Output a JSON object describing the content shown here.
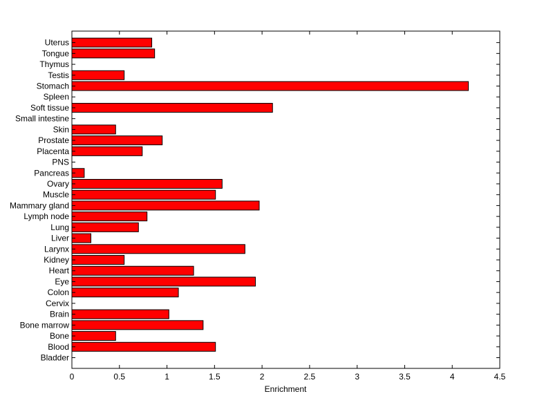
{
  "colors": {
    "bar_fill": "#ff0000",
    "bar_stroke": "#000000",
    "axis": "#000000",
    "background": "#ffffff"
  },
  "chart_data": {
    "type": "bar",
    "orientation": "horizontal",
    "categories": [
      "Bladder",
      "Blood",
      "Bone",
      "Bone marrow",
      "Brain",
      "Cervix",
      "Colon",
      "Eye",
      "Heart",
      "Kidney",
      "Larynx",
      "Liver",
      "Lung",
      "Lymph node",
      "Mammary gland",
      "Muscle",
      "Ovary",
      "Pancreas",
      "PNS",
      "Placenta",
      "Prostate",
      "Skin",
      "Small intestine",
      "Soft tissue",
      "Spleen",
      "Stomach",
      "Testis",
      "Thymus",
      "Tongue",
      "Uterus"
    ],
    "values": [
      0,
      1.51,
      0.46,
      1.38,
      1.02,
      0,
      1.12,
      1.93,
      1.28,
      0.55,
      1.82,
      0.2,
      0.7,
      0.79,
      1.97,
      1.51,
      1.58,
      0.13,
      0,
      0.74,
      0.95,
      0.46,
      0,
      2.11,
      0,
      4.17,
      0.55,
      0,
      0.87,
      0.84
    ],
    "title": "",
    "xlabel": "Enrichment",
    "ylabel": "",
    "xlim": [
      0,
      4.5
    ],
    "xticks": [
      "0",
      "0.5",
      "1",
      "1.5",
      "2",
      "2.5",
      "3",
      "3.5",
      "4",
      "4.5"
    ],
    "grid": false,
    "legend": "none"
  }
}
